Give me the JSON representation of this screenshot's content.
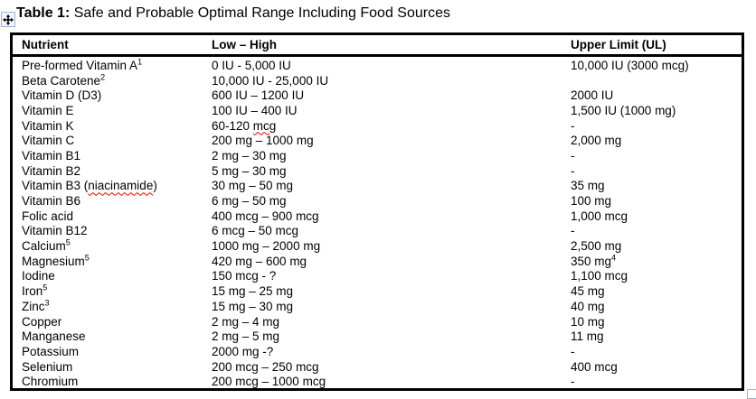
{
  "title": {
    "prefix": "Table 1:",
    "text": " Safe and Probable Optimal Range Including Food Sources"
  },
  "colors": {
    "table_border": "#000000",
    "text": "#000000",
    "spellcheck_underline": "#ff0000",
    "handle_border": "#9db4d6"
  },
  "icons": {
    "move_handle": "four-way-move-arrow",
    "resize_handle": "table-resize-square"
  },
  "table": {
    "headers": [
      "Nutrient",
      "Low – High",
      "Upper Limit (UL)"
    ],
    "rows": [
      {
        "nutrient": "Pre-formed Vitamin A",
        "nutrient_sup": "1",
        "low_high": "0 IU - 5,000 IU",
        "upper_limit": "10,000 IU (3000 mcg)"
      },
      {
        "nutrient": "Beta Carotene",
        "nutrient_sup": "2",
        "low_high": "10,000 IU - 25,000 IU",
        "upper_limit": ""
      },
      {
        "nutrient": "Vitamin D (D3)",
        "low_high": "600 IU – 1200 IU",
        "upper_limit": "2000 IU"
      },
      {
        "nutrient": "Vitamin E",
        "low_high": "100 IU – 400 IU",
        "upper_limit": "1,500 IU (1000 mg)"
      },
      {
        "nutrient": "Vitamin K",
        "low_high": "60-120 mcg",
        "low_high_misspelled": "mcg",
        "upper_limit": "-"
      },
      {
        "nutrient": "Vitamin C",
        "low_high": "200 mg – 1000 mg",
        "upper_limit": "2,000 mg"
      },
      {
        "nutrient": "Vitamin B1",
        "low_high": "2 mg – 30 mg",
        "upper_limit": "-"
      },
      {
        "nutrient": "Vitamin B2",
        "low_high": "5 mg – 30 mg",
        "upper_limit": "-"
      },
      {
        "nutrient": "Vitamin B3 (niacinamide)",
        "nutrient_misspelled": "niacinamide",
        "low_high": "30 mg – 50 mg",
        "upper_limit": "35 mg"
      },
      {
        "nutrient": "Vitamin B6",
        "low_high": "6 mg – 50 mg",
        "upper_limit": "100 mg"
      },
      {
        "nutrient": "Folic acid",
        "low_high": "400 mcg – 900 mcg",
        "upper_limit": "1,000 mcg"
      },
      {
        "nutrient": "Vitamin B12",
        "low_high": "6 mcg – 50 mcg",
        "upper_limit": "-"
      },
      {
        "nutrient": "Calcium",
        "nutrient_sup": "5",
        "low_high": "1000 mg – 2000 mg",
        "upper_limit": "2,500 mg"
      },
      {
        "nutrient": "Magnesium",
        "nutrient_sup": "5",
        "low_high": "420 mg – 600 mg",
        "upper_limit": "350 mg",
        "upper_limit_sup": "4"
      },
      {
        "nutrient": "Iodine",
        "low_high": "150 mcg - ?",
        "upper_limit": "1,100 mcg"
      },
      {
        "nutrient": "Iron",
        "nutrient_sup": "5",
        "low_high": "15 mg – 25 mg",
        "upper_limit": "45 mg"
      },
      {
        "nutrient": "Zinc",
        "nutrient_sup": "3",
        "low_high": "15 mg – 30 mg",
        "upper_limit": "40 mg"
      },
      {
        "nutrient": "Copper",
        "low_high": "2 mg – 4 mg",
        "upper_limit": "10 mg"
      },
      {
        "nutrient": "Manganese",
        "low_high": "2 mg – 5 mg",
        "upper_limit": "11 mg"
      },
      {
        "nutrient": "Potassium",
        "low_high": "2000 mg -?",
        "upper_limit": "-"
      },
      {
        "nutrient": "Selenium",
        "low_high": "200 mcg – 250 mcg",
        "upper_limit": "400 mcg"
      },
      {
        "nutrient": "Chromium",
        "low_high": "200 mcg – 1000 mcg",
        "upper_limit": "-"
      }
    ]
  }
}
